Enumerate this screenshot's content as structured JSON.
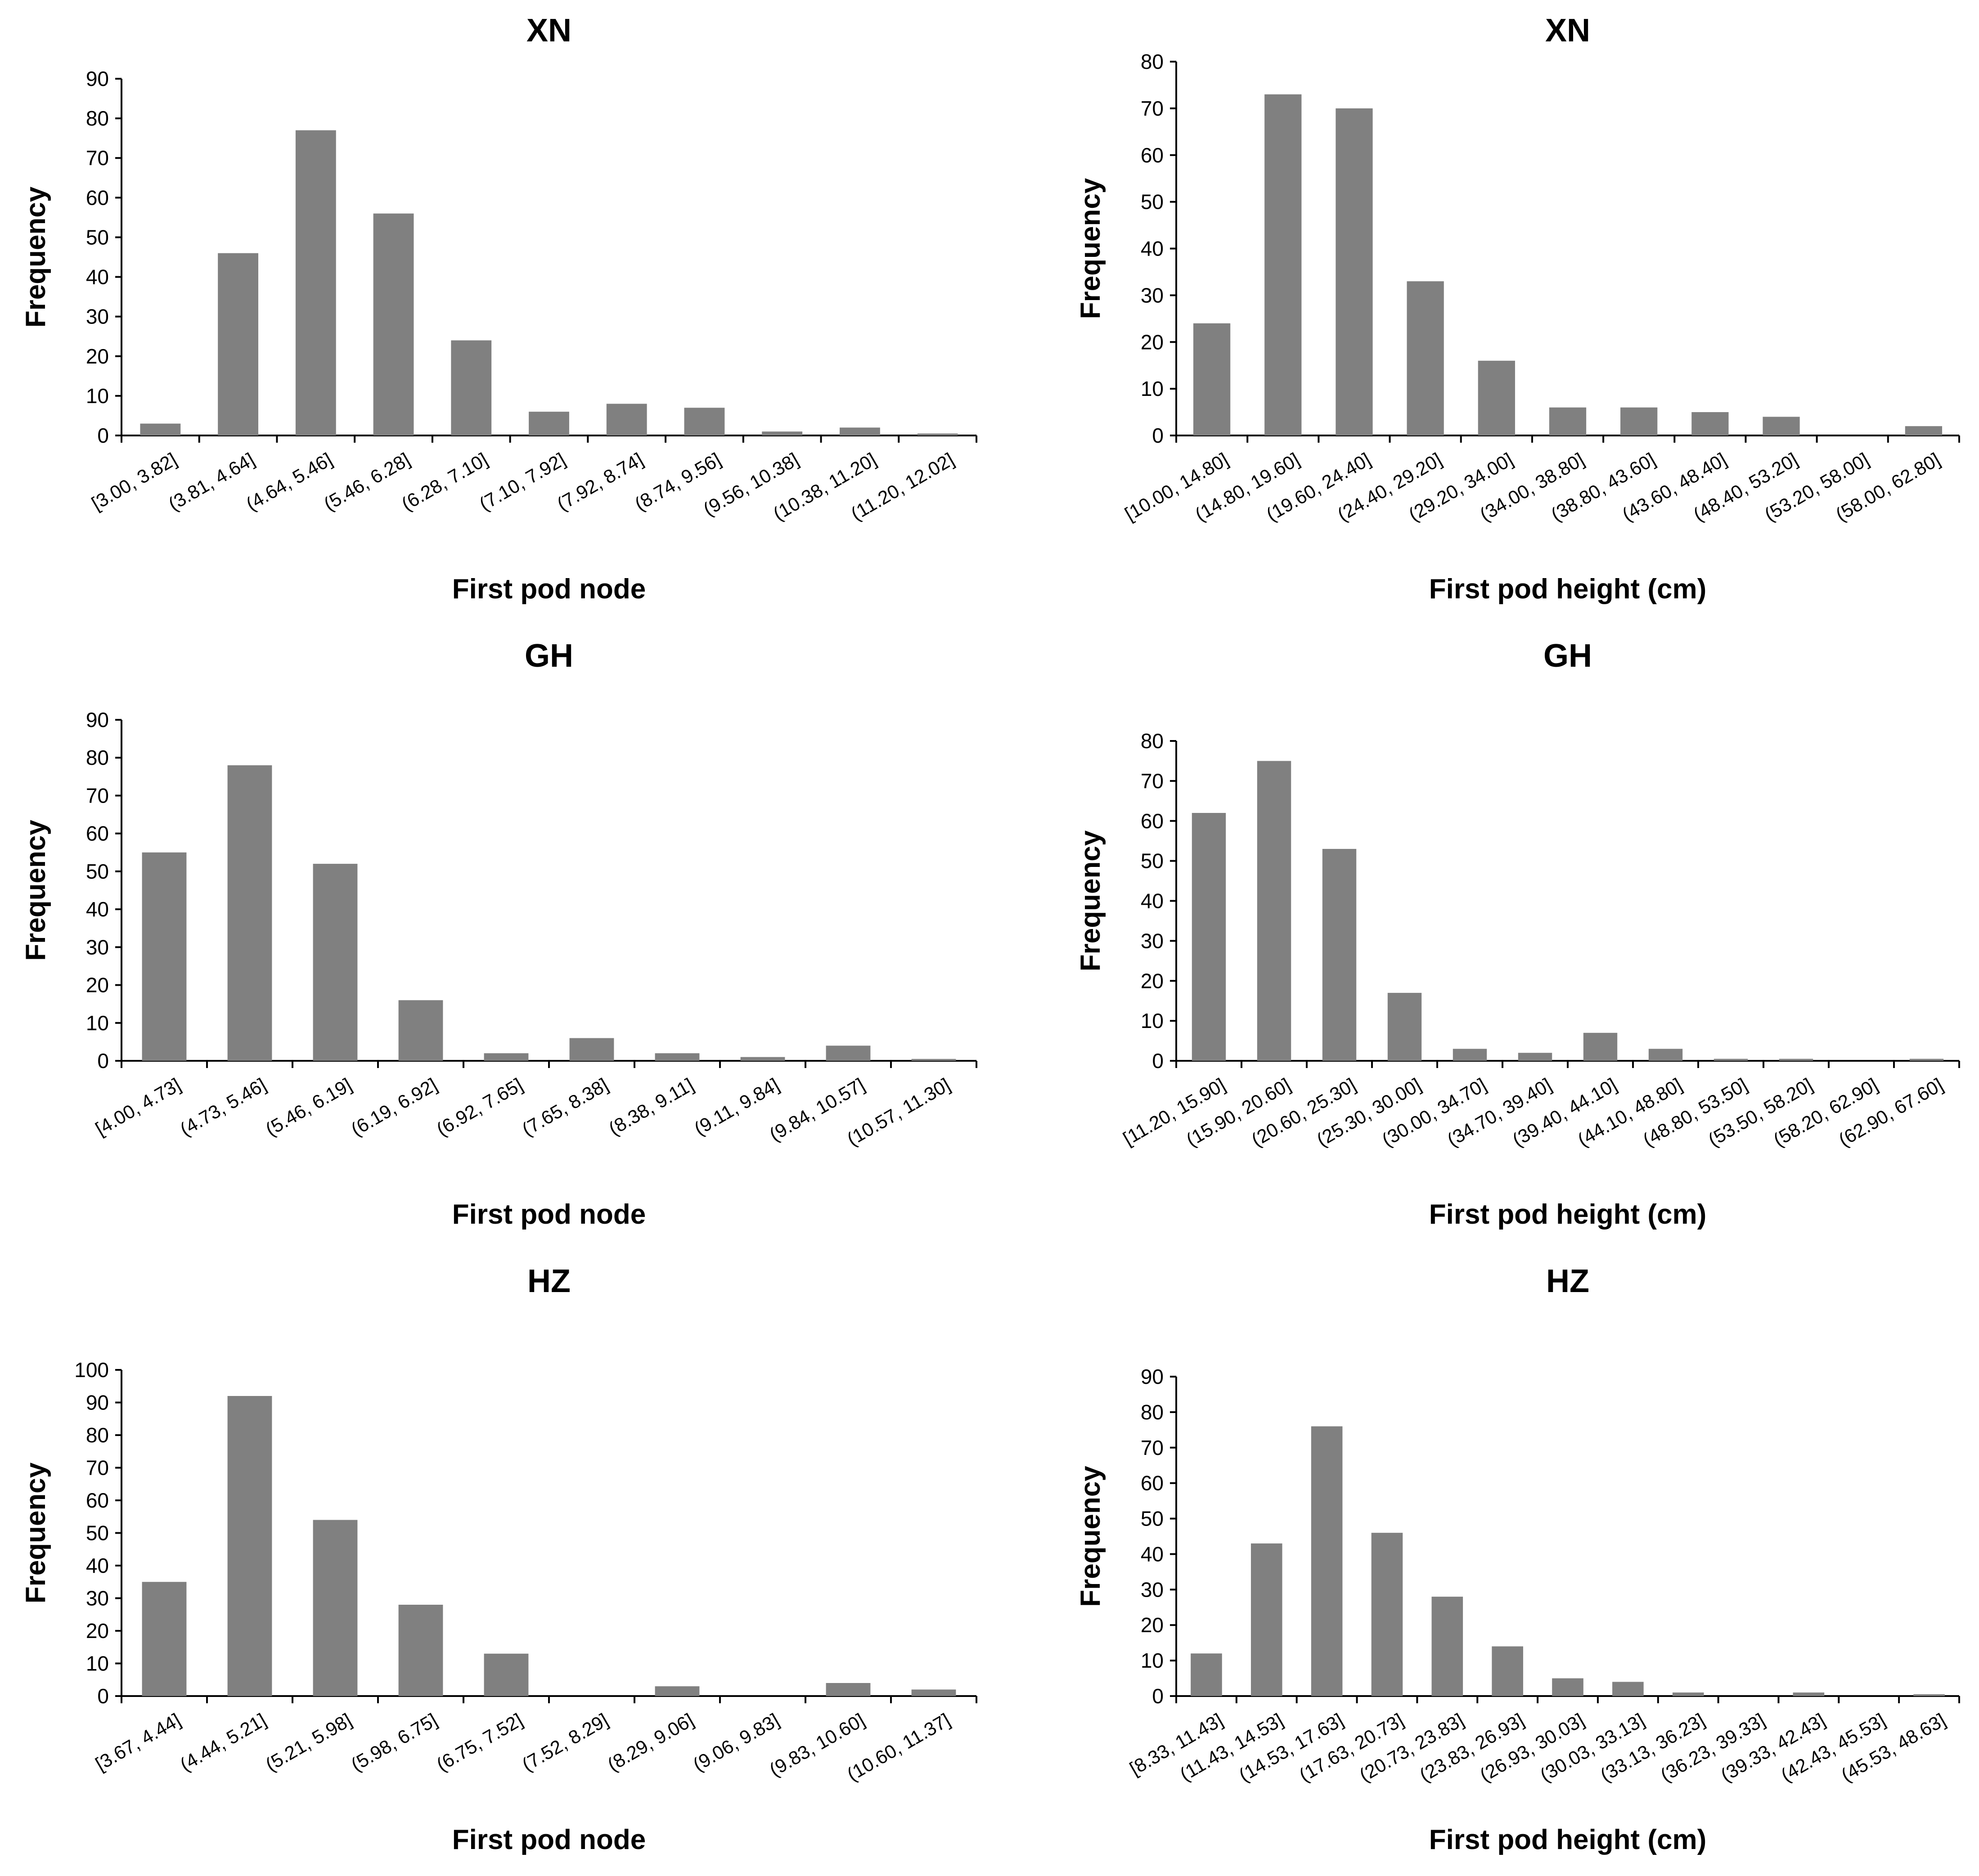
{
  "chart_data": [
    {
      "type": "bar",
      "title": "XN",
      "xlabel": "First pod node",
      "ylabel": "Frequency",
      "ylim": [
        0,
        90
      ],
      "yticks": [
        "0",
        "10",
        "20",
        "30",
        "40",
        "50",
        "60",
        "70",
        "80",
        "90"
      ],
      "categories": [
        "[3.00, 3.82]",
        "(3.81, 4.64]",
        "(4.64, 5.46]",
        "(5.46, 6.28]",
        "(6.28, 7.10]",
        "(7.10, 7.92]",
        "(7.92, 8.74]",
        "(8.74, 9.56]",
        "(9.56, 10.38]",
        "(10.38, 11.20]",
        "(11.20, 12.02]"
      ],
      "values": [
        3,
        46,
        77,
        56,
        24,
        6,
        8,
        7,
        1,
        2,
        0.5
      ]
    },
    {
      "type": "bar",
      "title": "XN",
      "xlabel": "First pod height (cm)",
      "ylabel": "Frequency",
      "ylim": [
        0,
        80
      ],
      "yticks": [
        "0",
        "10",
        "20",
        "30",
        "40",
        "50",
        "60",
        "70",
        "80"
      ],
      "categories": [
        "[10.00, 14.80]",
        "(14.80, 19.60]",
        "(19.60, 24.40]",
        "(24.40, 29.20]",
        "(29.20, 34.00]",
        "(34.00, 38.80]",
        "(38.80, 43.60]",
        "(43.60, 48.40]",
        "(48.40, 53.20]",
        "(53.20, 58.00]",
        "(58.00, 62.80]"
      ],
      "values": [
        24,
        73,
        70,
        33,
        16,
        6,
        6,
        5,
        4,
        0,
        2
      ]
    },
    {
      "type": "bar",
      "title": "GH",
      "xlabel": "First pod node",
      "ylabel": "Frequency",
      "ylim": [
        0,
        90
      ],
      "yticks": [
        "0",
        "10",
        "20",
        "30",
        "40",
        "50",
        "60",
        "70",
        "80",
        "90"
      ],
      "categories": [
        "[4.00, 4.73]",
        "(4.73, 5.46]",
        "(5.46, 6.19]",
        "(6.19, 6.92]",
        "(6.92, 7.65]",
        "(7.65, 8.38]",
        "(8.38, 9.11]",
        "(9.11, 9.84]",
        "(9.84, 10.57]",
        "(10.57, 11.30]"
      ],
      "values": [
        55,
        78,
        52,
        16,
        2,
        6,
        2,
        1,
        4,
        0.5
      ]
    },
    {
      "type": "bar",
      "title": "GH",
      "xlabel": "First pod height (cm)",
      "ylabel": "Frequency",
      "ylim": [
        0,
        80
      ],
      "yticks": [
        "0",
        "10",
        "20",
        "30",
        "40",
        "50",
        "60",
        "70",
        "80"
      ],
      "categories": [
        "[11.20, 15.90]",
        "(15.90, 20.60]",
        "(20.60, 25.30]",
        "(25.30, 30.00]",
        "(30.00, 34.70]",
        "(34.70, 39.40]",
        "(39.40, 44.10]",
        "(44.10, 48.80]",
        "(48.80, 53.50]",
        "(53.50, 58.20]",
        "(58.20, 62.90]",
        "(62.90, 67.60]"
      ],
      "values": [
        62,
        75,
        53,
        17,
        3,
        2,
        7,
        3,
        0.5,
        0.5,
        0,
        0.5
      ]
    },
    {
      "type": "bar",
      "title": "HZ",
      "xlabel": "First pod node",
      "ylabel": "Frequency",
      "ylim": [
        0,
        100
      ],
      "yticks": [
        "0",
        "10",
        "20",
        "30",
        "40",
        "50",
        "60",
        "70",
        "80",
        "90",
        "100"
      ],
      "categories": [
        "[3.67, 4.44]",
        "(4.44, 5.21]",
        "(5.21, 5.98]",
        "(5.98, 6.75]",
        "(6.75, 7.52]",
        "(7.52, 8.29]",
        "(8.29, 9.06]",
        "(9.06, 9.83]",
        "(9.83, 10.60]",
        "(10.60, 11.37]"
      ],
      "values": [
        35,
        92,
        54,
        28,
        13,
        0,
        3,
        0,
        4,
        2
      ]
    },
    {
      "type": "bar",
      "title": "HZ",
      "xlabel": "First pod height (cm)",
      "ylabel": "Frequency",
      "ylim": [
        0,
        90
      ],
      "yticks": [
        "0",
        "10",
        "20",
        "30",
        "40",
        "50",
        "60",
        "70",
        "80",
        "90"
      ],
      "categories": [
        "[8.33, 11.43]",
        "(11.43, 14.53]",
        "(14.53, 17.63]",
        "(17.63, 20.73]",
        "(20.73, 23.83]",
        "(23.83, 26.93]",
        "(26.93, 30.03]",
        "(30.03, 33.13]",
        "(33.13, 36.23]",
        "(36.23, 39.33]",
        "(39.33, 42.43]",
        "(42.43, 45.53]",
        "(45.53, 48.63]"
      ],
      "values": [
        12,
        43,
        76,
        46,
        28,
        14,
        5,
        4,
        1,
        0,
        1,
        0,
        0.5
      ]
    }
  ]
}
